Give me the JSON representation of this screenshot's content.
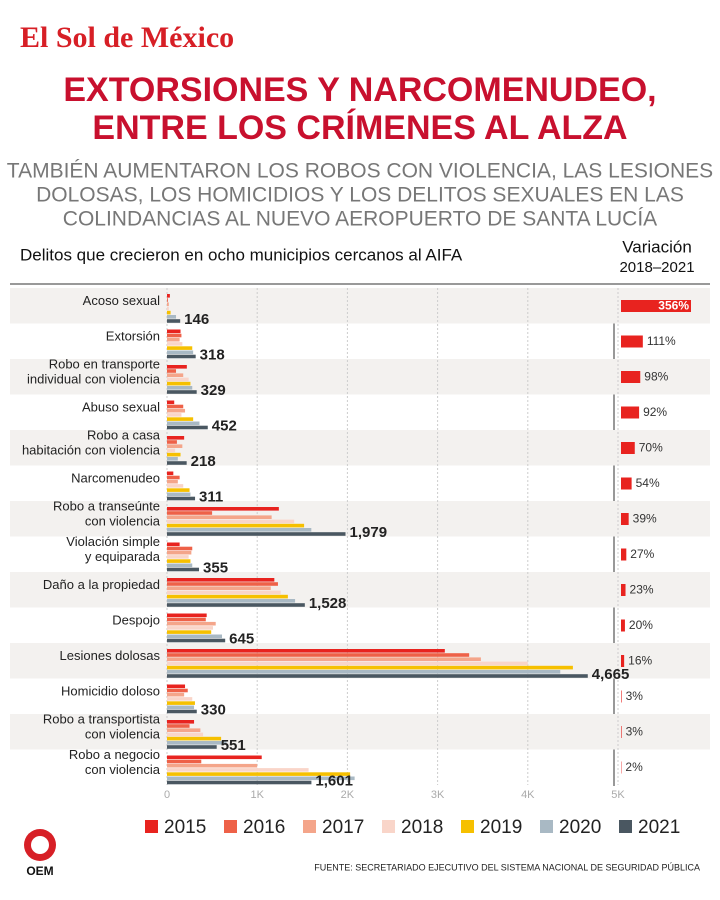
{
  "header": {
    "brand": "El Sol de México",
    "logo": "OEM"
  },
  "source": "FUENTE: SECRETARIADO EJECUTIVO DEL SISTEMA NACIONAL DE SEGURIDAD PÚBLICA",
  "chart_data": {
    "type": "bar",
    "orientation": "horizontal",
    "title": [
      "EXTORSIONES Y NARCOMENUDEO,",
      "ENTRE LOS CRÍMENES AL ALZA"
    ],
    "subtitle": [
      "TAMBIÉN AUMENTARON LOS ROBOS CON VIOLENCIA, LAS LESIONES",
      "DOLOSAS, LOS HOMICIDIOS Y LOS DELITOS SEXUALES EN LAS",
      "COLINDANCIAS AL NUEVO AEROPUERTO DE SANTA LUCÍA"
    ],
    "chart_title": "Delitos que crecieron en ocho municipios cercanos al AIFA",
    "categories": [
      "Acoso sexual",
      "Extorsión",
      "Robo en transporte\nindividual con violencia",
      "Abuso sexual",
      "Robo a casa\nhabitación con violencia",
      "Narcomenudeo",
      "Robo a transeúnte\ncon violencia",
      "Violación simple\ny equiparada",
      "Daño a la propiedad",
      "Despojo",
      "Lesiones dolosas",
      "Homicidio doloso",
      "Robo a transportista\ncon violencia",
      "Robo a negocio\ncon violencia"
    ],
    "series": [
      {
        "name": "2015",
        "color": "#e8231f",
        "values": [
          32,
          150,
          220,
          80,
          190,
          70,
          1240,
          140,
          1190,
          440,
          3080,
          200,
          300,
          1050
        ]
      },
      {
        "name": "2016",
        "color": "#ee6148",
        "values": [
          10,
          160,
          100,
          180,
          110,
          140,
          500,
          280,
          1230,
          430,
          3350,
          230,
          250,
          380
        ]
      },
      {
        "name": "2017",
        "color": "#f4a58a",
        "values": [
          20,
          140,
          180,
          200,
          170,
          120,
          1160,
          270,
          1150,
          540,
          3480,
          190,
          370,
          1000
        ]
      },
      {
        "name": "2018",
        "color": "#f9d5c9",
        "values": [
          20,
          170,
          240,
          160,
          90,
          180,
          1410,
          240,
          1260,
          510,
          4000,
          280,
          400,
          1570
        ]
      },
      {
        "name": "2019",
        "color": "#f6c000",
        "values": [
          40,
          280,
          260,
          290,
          150,
          250,
          1520,
          260,
          1340,
          490,
          4500,
          310,
          600,
          2030
        ]
      },
      {
        "name": "2020",
        "color": "#a9b9c4",
        "values": [
          100,
          290,
          280,
          360,
          120,
          260,
          1600,
          280,
          1420,
          610,
          4360,
          300,
          660,
          2080
        ]
      },
      {
        "name": "2021",
        "color": "#4a5761",
        "values": [
          146,
          318,
          329,
          452,
          218,
          311,
          1979,
          355,
          1528,
          645,
          4665,
          330,
          551,
          1601
        ],
        "value_labels": [
          "146",
          "318",
          "329",
          "452",
          "218",
          "311",
          "1,979",
          "355",
          "1,528",
          "645",
          "4,665",
          "330",
          "551",
          "1,601"
        ]
      }
    ],
    "xlim": [
      0,
      5000
    ],
    "xticks": [
      0,
      {
        "value": 1000,
        "label": "1K"
      },
      {
        "value": 2000,
        "label": "2K"
      },
      {
        "value": 3000,
        "label": "3K"
      },
      {
        "value": 4000,
        "label": "4K"
      },
      {
        "value": 5000,
        "label": "5K"
      }
    ],
    "grid": true,
    "variation": {
      "title": "Variación",
      "subtitle": "2018–2021",
      "color": "#e8231f",
      "values": [
        356,
        111,
        98,
        92,
        70,
        54,
        39,
        27,
        23,
        20,
        16,
        3,
        3,
        2
      ],
      "value_labels": [
        "356%",
        "111%",
        "98%",
        "92%",
        "70%",
        "54%",
        "39%",
        "27%",
        "23%",
        "20%",
        "16%",
        "3%",
        "3%",
        "2%"
      ]
    }
  }
}
